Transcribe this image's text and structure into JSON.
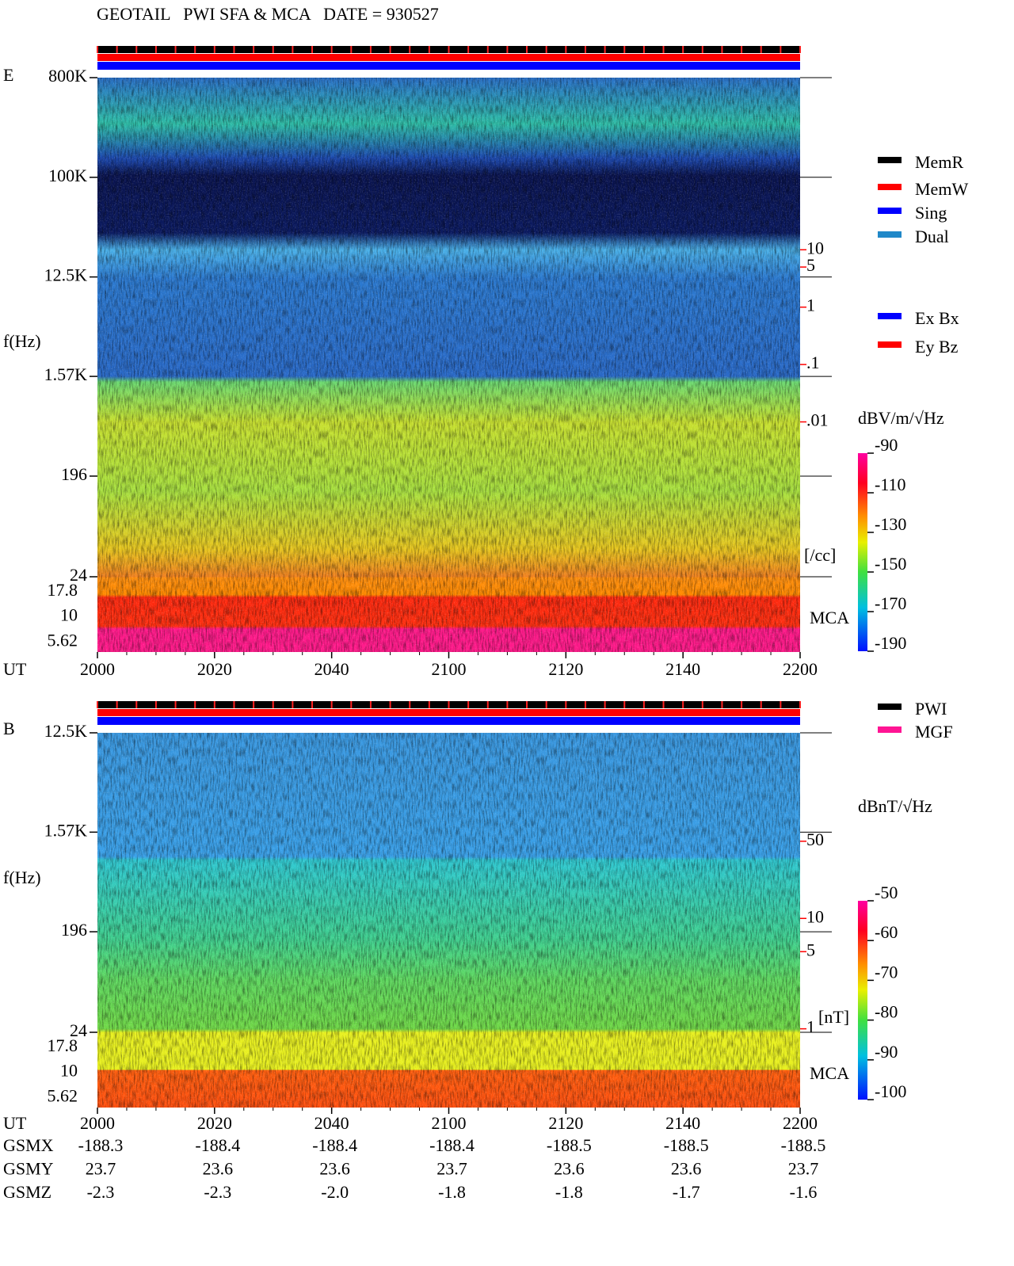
{
  "title": "GEOTAIL   PWI SFA & MCA   DATE = 930527",
  "chart_data": [
    {
      "type": "spectrogram",
      "panel": "E",
      "ylabel": "f(Hz)",
      "xlabel": "UT",
      "log_y": true,
      "ylim": [
        24,
        800000
      ],
      "yticks": [
        {
          "value": 800000,
          "label": "800K"
        },
        {
          "value": 100000,
          "label": "100K"
        },
        {
          "value": 12500,
          "label": "12.5K"
        },
        {
          "value": 1570,
          "label": "1.57K"
        },
        196,
        24
      ],
      "mca_channels": [
        "17.8",
        "10",
        "5.62"
      ],
      "mca_label": "MCA",
      "xticks": [
        "2000",
        "2020",
        "2040",
        "2100",
        "2120",
        "2140",
        "2200"
      ],
      "y2lim": [
        2e-05,
        10000
      ],
      "y2ticks": [
        10,
        5,
        1,
        {
          "value": 0.1,
          "label": ".1"
        },
        {
          "value": 0.01,
          "label": ".01"
        }
      ],
      "y2label": "[/cc]",
      "y2color": "#ff0000",
      "colorbar": {
        "label": "dBV/m/√Hz",
        "lim": [
          -190,
          -90
        ],
        "ticks": [
          -90,
          -110,
          -130,
          -150,
          -170,
          -190
        ]
      },
      "legend": [
        [
          {
            "name": "MemR",
            "color": "#000000"
          },
          {
            "name": "MemW",
            "color": "#ff0000"
          },
          {
            "name": "Sing",
            "color": "#0000ff"
          },
          {
            "name": "Dual",
            "color": "#2088c8"
          }
        ],
        [
          {
            "name": "Ex Bx",
            "color": "#0000ff"
          },
          {
            "name": "Ey Bz",
            "color": "#ff0000"
          }
        ]
      ]
    },
    {
      "type": "spectrogram",
      "panel": "B",
      "ylabel": "f(Hz)",
      "xlabel": "UT",
      "log_y": true,
      "ylim": [
        24,
        12500
      ],
      "yticks": [
        {
          "value": 12500,
          "label": "12.5K"
        },
        {
          "value": 1570,
          "label": "1.57K"
        },
        196,
        24
      ],
      "mca_channels": [
        "17.8",
        "10",
        "5.62"
      ],
      "mca_label": "MCA",
      "xticks": [
        "2000",
        "2020",
        "2040",
        "2100",
        "2120",
        "2140",
        "2200"
      ],
      "y2lim": [
        0.93,
        480
      ],
      "y2ticks": [
        50,
        10,
        5,
        1
      ],
      "y2label": "[nT]",
      "y2color": "#ff0000",
      "colorbar": {
        "label": "dBnT/√Hz",
        "lim": [
          -100,
          -50
        ],
        "ticks": [
          -50,
          -60,
          -70,
          -80,
          -90,
          -100
        ]
      },
      "legend": [
        [
          {
            "name": "PWI",
            "color": "#000000"
          },
          {
            "name": "MGF",
            "color": "#ff1493"
          }
        ]
      ],
      "ephemeris": [
        {
          "name": "GSMX",
          "values": [
            "-188.3",
            "-188.4",
            "-188.4",
            "-188.4",
            "-188.5",
            "-188.5",
            "-188.5"
          ]
        },
        {
          "name": "GSMY",
          "values": [
            "23.7",
            "23.6",
            "23.6",
            "23.7",
            "23.6",
            "23.6",
            "23.7"
          ]
        },
        {
          "name": "GSMZ",
          "values": [
            "-2.3",
            "-2.3",
            "-2.0",
            "-1.8",
            "-1.8",
            "-1.7",
            "-1.6"
          ]
        }
      ]
    }
  ]
}
